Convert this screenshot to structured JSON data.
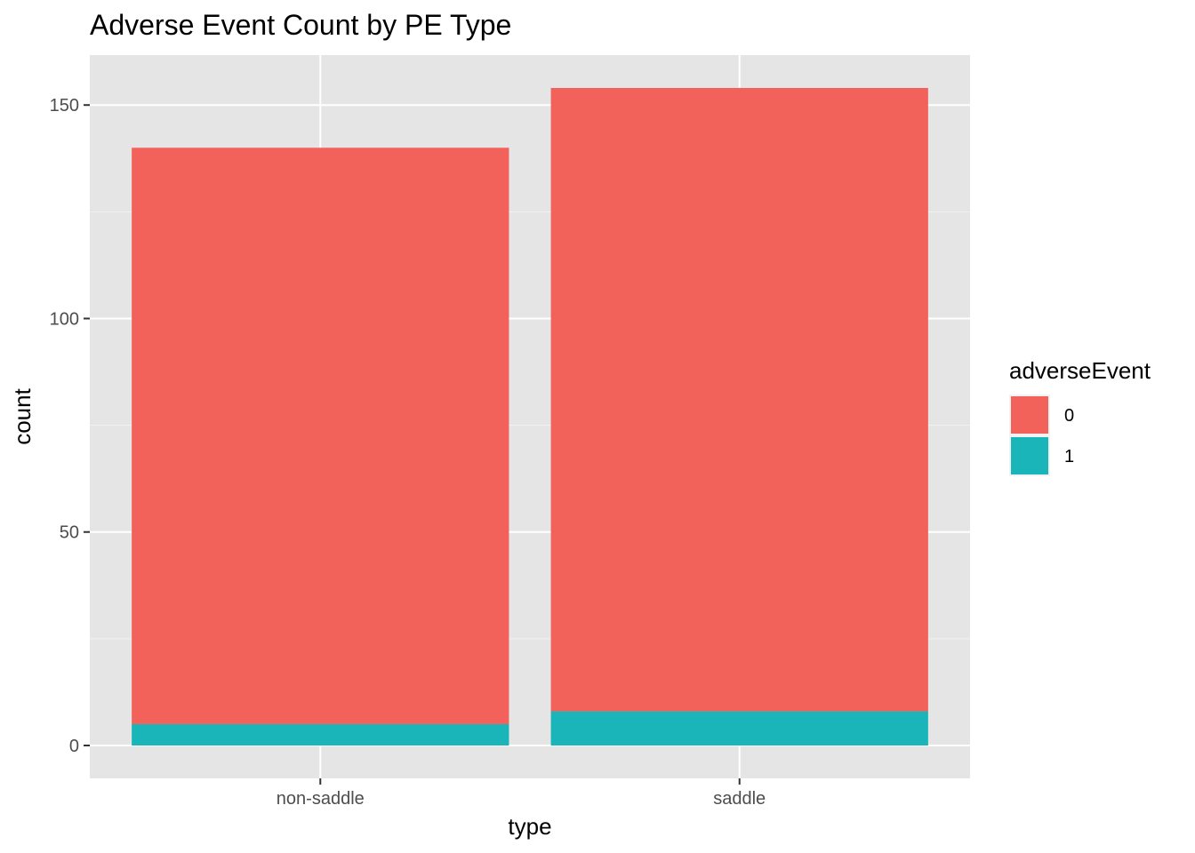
{
  "chart_data": {
    "type": "bar",
    "stacked": true,
    "title": "Adverse Event Count by PE Type",
    "xlabel": "type",
    "ylabel": "count",
    "categories": [
      "non-saddle",
      "saddle"
    ],
    "series": [
      {
        "name": "0",
        "values": [
          135,
          146
        ],
        "color": "#F2615A"
      },
      {
        "name": "1",
        "values": [
          5,
          8
        ],
        "color": "#19B5B9"
      }
    ],
    "ylim": [
      -7.7,
      161.7
    ],
    "yticks": [
      0,
      50,
      100,
      150
    ],
    "yticklabels": [
      "0",
      "50",
      "100",
      "150"
    ],
    "grid": true,
    "legend": {
      "title": "adverseEvent",
      "position": "right",
      "entries": [
        "0",
        "1"
      ]
    },
    "colors": {
      "panel": "#E5E5E5",
      "grid_major": "#FFFFFF",
      "grid_minor": "#F2F2F2",
      "tick_text": "#4D4D4D"
    }
  }
}
